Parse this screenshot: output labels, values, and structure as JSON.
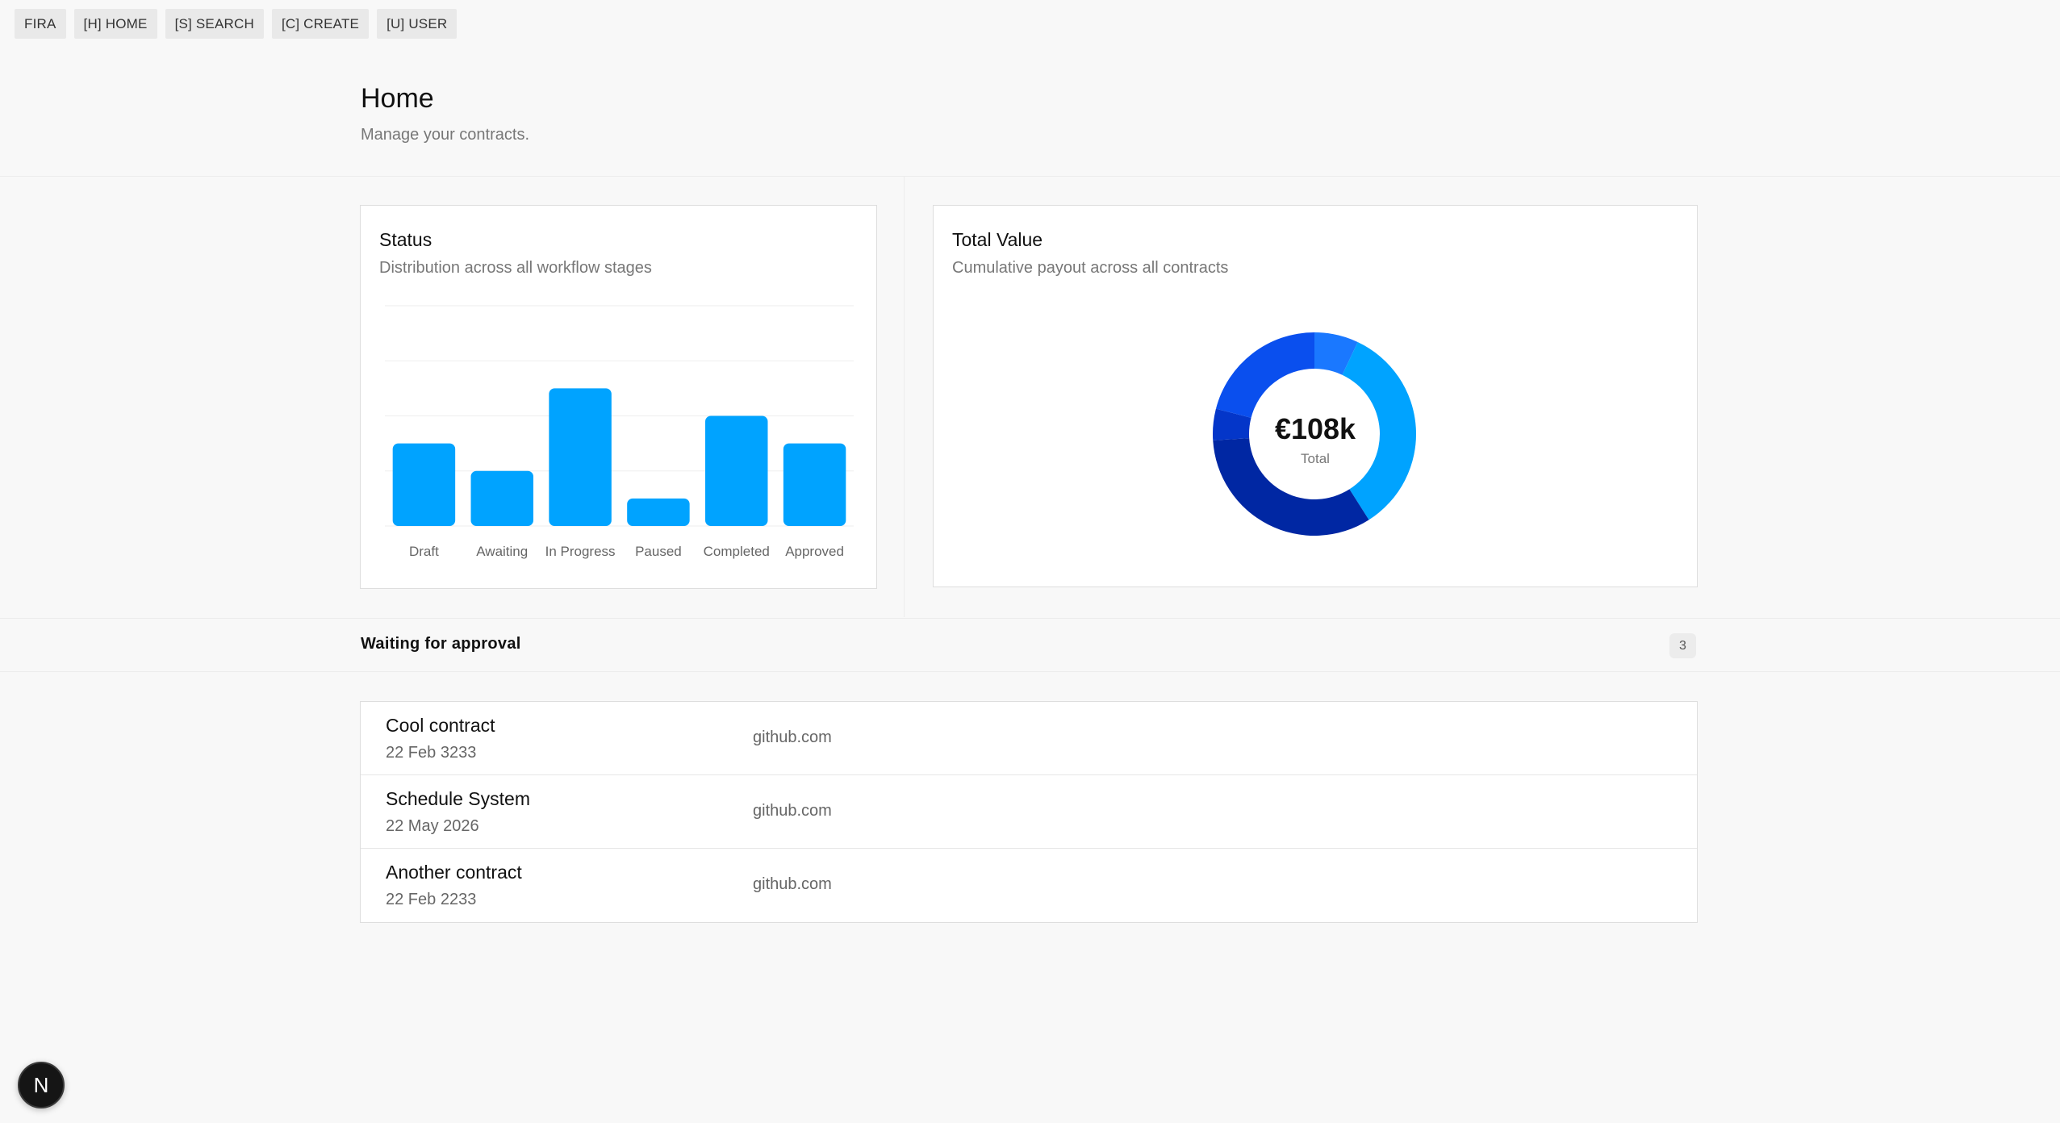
{
  "nav": {
    "items": [
      {
        "label": "FIRA"
      },
      {
        "label": "[H] HOME"
      },
      {
        "label": "[S] SEARCH"
      },
      {
        "label": "[C] CREATE"
      },
      {
        "label": "[U] USER"
      }
    ]
  },
  "header": {
    "title": "Home",
    "subtitle": "Manage your contracts."
  },
  "status_card": {
    "title": "Status",
    "subtitle": "Distribution across all workflow stages"
  },
  "value_card": {
    "title": "Total Value",
    "subtitle": "Cumulative payout across all contracts",
    "total_value": "€108k",
    "total_label": "Total"
  },
  "chart_data": [
    {
      "type": "bar",
      "categories": [
        "Draft",
        "Awaiting",
        "In Progress",
        "Paused",
        "Completed",
        "Approved"
      ],
      "values": [
        3,
        2,
        5,
        1,
        4,
        3
      ],
      "ylim": [
        0,
        8
      ],
      "grid": true,
      "colors": {
        "bar": "#00a3ff"
      }
    },
    {
      "type": "pie",
      "values": [
        7,
        34,
        33,
        5,
        21
      ],
      "colors": [
        "#1a78ff",
        "#00a3ff",
        "#0027a3",
        "#0436c9",
        "#0a4fee"
      ]
    }
  ],
  "waiting": {
    "title": "Waiting for approval",
    "count": "3",
    "items": [
      {
        "name": "Cool contract",
        "date": "22 Feb 3233",
        "source": "github.com"
      },
      {
        "name": "Schedule System",
        "date": "22 May 2026",
        "source": "github.com"
      },
      {
        "name": "Another contract",
        "date": "22 Feb 2233",
        "source": "github.com"
      }
    ]
  },
  "dev_badge": {
    "label": "N"
  }
}
